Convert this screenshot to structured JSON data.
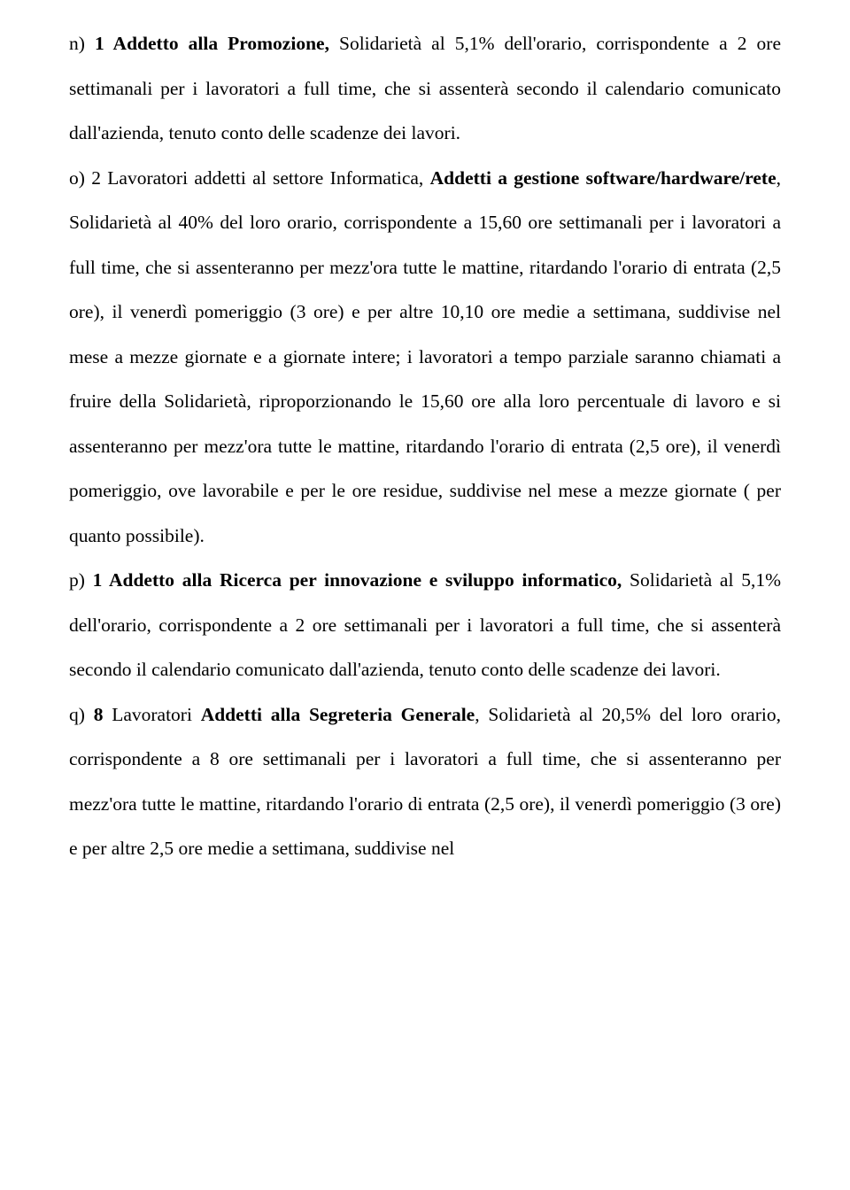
{
  "paragraphs": {
    "n": {
      "prefix": "n) ",
      "bold1": "1 Addetto alla Promozione,",
      "text1": " Solidarietà al 5,1% dell'orario, corrispondente a 2 ore settimanali per i lavoratori a full time, che si assenterà secondo il calendario comunicato dall'azienda, tenuto conto delle scadenze dei lavori."
    },
    "o": {
      "prefix": "o) 2 Lavoratori addetti al settore Informatica, ",
      "bold1": "Addetti a gestione software/hardware/rete",
      "text1": ", Solidarietà al 40% del loro orario, corrispondente a 15,60 ore settimanali per i lavoratori a full time, che si assenteranno per mezz'ora tutte le mattine, ritardando l'orario di entrata (2,5 ore), il venerdì pomeriggio (3 ore) e per altre 10,10 ore medie a settimana, suddivise nel mese a mezze giornate e a giornate intere; i lavoratori a tempo parziale saranno chiamati a fruire della Solidarietà, riproporzionando le 15,60 ore alla loro percentuale di lavoro e si assenteranno per mezz'ora tutte le mattine, ritardando l'orario di entrata (2,5 ore), il venerdì pomeriggio, ove lavorabile e per le ore residue, suddivise nel mese a mezze giornate ( per quanto possibile)."
    },
    "p": {
      "prefix": "p) ",
      "bold1": "1 Addetto alla Ricerca per innovazione e sviluppo informatico,",
      "text1": " Solidarietà al 5,1% dell'orario, corrispondente a 2 ore settimanali per i lavoratori a full time, che si assenterà secondo il calendario comunicato dall'azienda, tenuto conto delle scadenze dei lavori."
    },
    "q": {
      "prefix": "q) ",
      "bold1": "8",
      "text1": " Lavoratori ",
      "bold2": "Addetti alla Segreteria Generale",
      "text2": ", Solidarietà al 20,5% del loro orario, corrispondente a 8 ore settimanali per i lavoratori a full time, che si assenteranno per mezz'ora tutte le mattine, ritardando l'orario di entrata (2,5 ore), il venerdì pomeriggio (3 ore) e per altre 2,5 ore medie a settimana, suddivise nel"
    }
  }
}
